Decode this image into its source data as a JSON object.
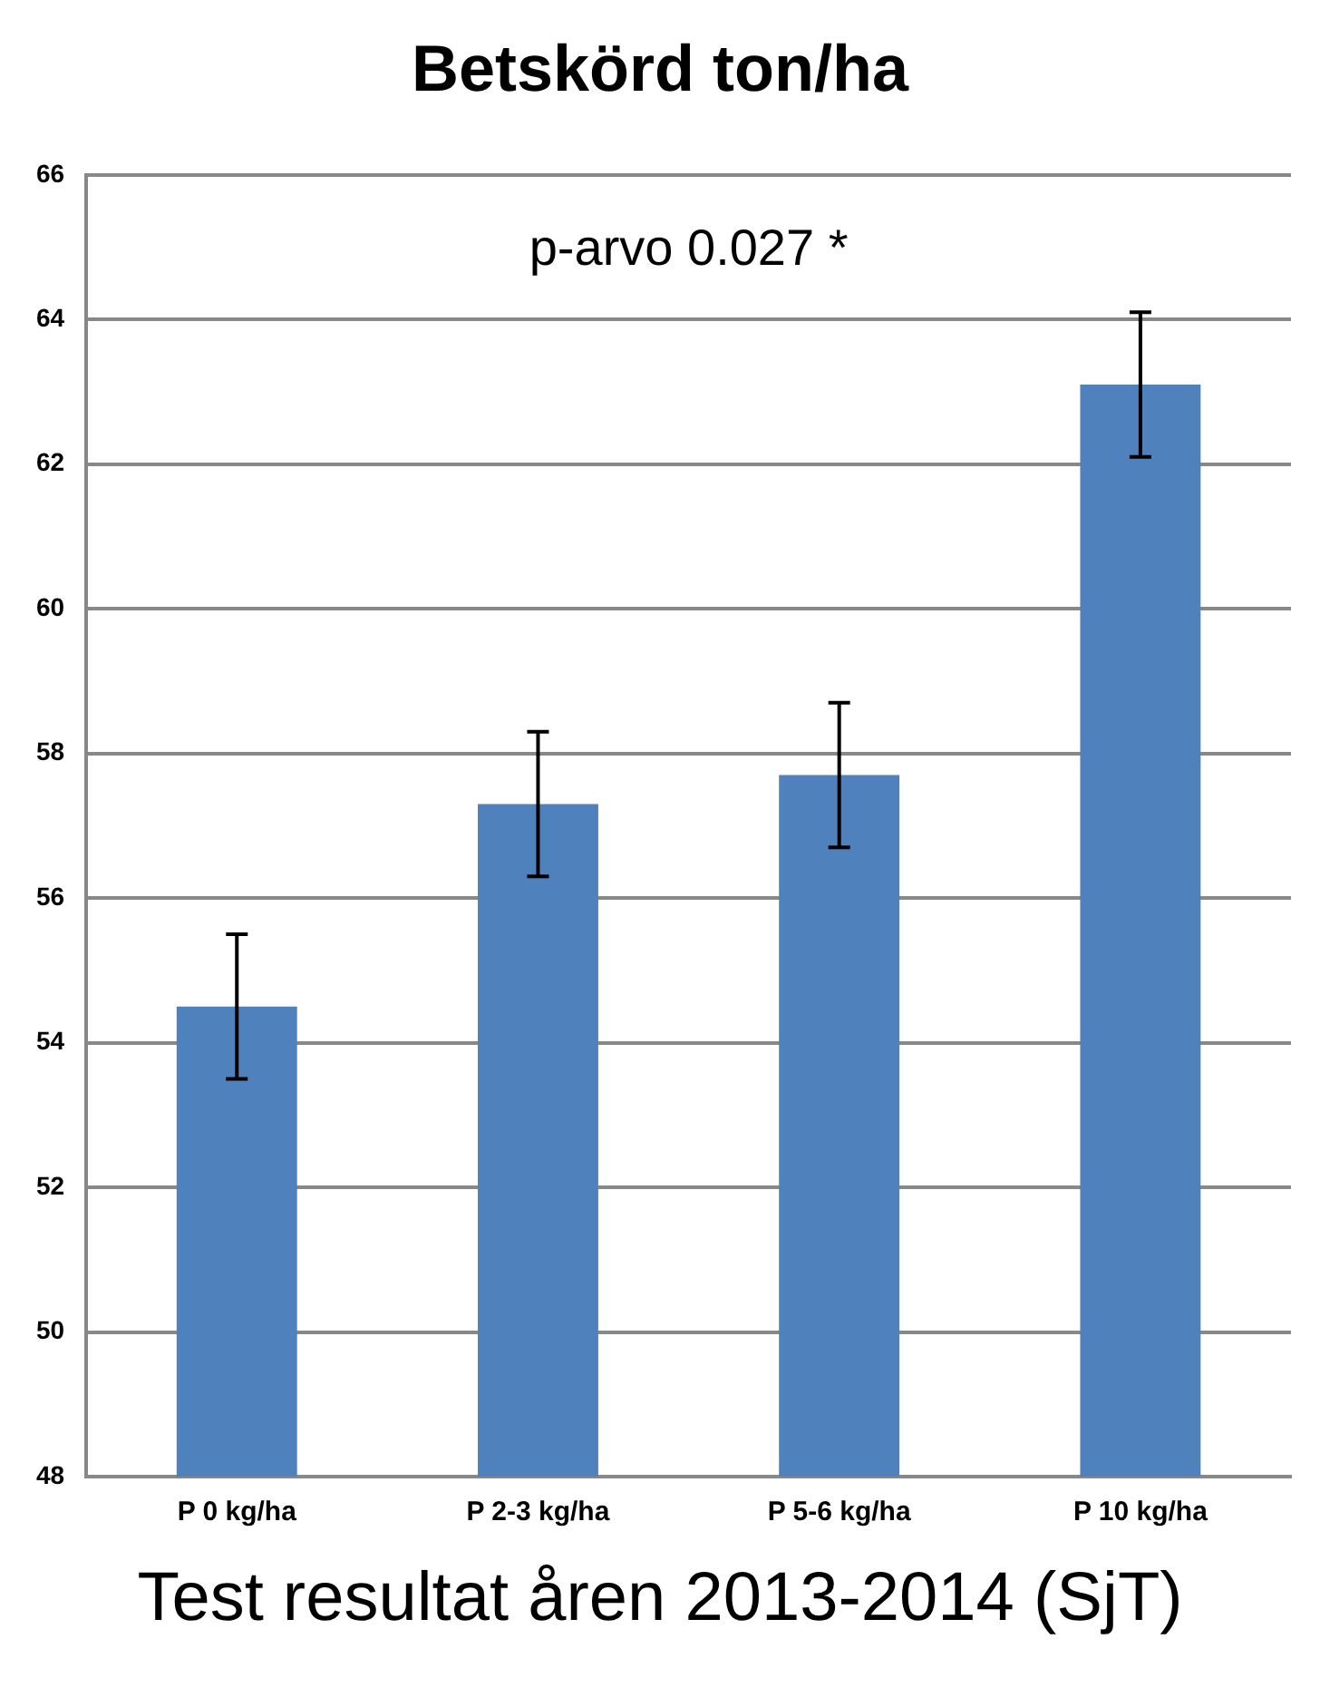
{
  "chart_data": {
    "type": "bar",
    "title": "Betskörd ton/ha",
    "categories": [
      "P 0 kg/ha",
      "P 2-3 kg/ha",
      "P 5-6 kg/ha",
      "P 10 kg/ha"
    ],
    "series": [
      {
        "color": "#4f81bd",
        "values": [
          54.5,
          57.3,
          57.7,
          63.1
        ],
        "errors": [
          1,
          1,
          1,
          1
        ]
      }
    ],
    "ylim": [
      48,
      66
    ],
    "yticks": [
      48,
      50,
      52,
      54,
      56,
      58,
      60,
      62,
      64,
      66
    ],
    "grid": "y",
    "annotations": [
      "p-arvo 0.027 *",
      "Test resultat åren 2013-2014 (SjT)"
    ]
  }
}
